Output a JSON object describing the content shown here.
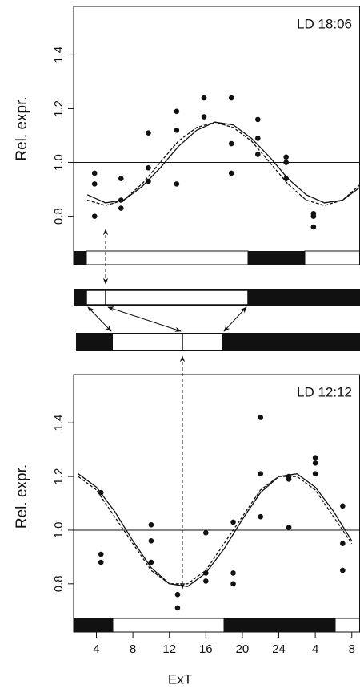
{
  "chart_data": [
    {
      "type": "scatter",
      "annotation": "LD 18:06",
      "ylabel": "Rel. expr.",
      "xlim": [
        1.5,
        32.9
      ],
      "ylim": [
        0.62,
        1.58
      ],
      "yticks": [
        0.8,
        {
          "value": 1,
          "label": "1.0"
        },
        1.2,
        1.4
      ],
      "hline": 1,
      "color": "#111",
      "series": [
        {
          "type": "scatter",
          "x": [
            3.8,
            3.8,
            3.8,
            6.7,
            6.7,
            6.7,
            9.7,
            9.7,
            9.7,
            12.8,
            12.8,
            12.8,
            15.8,
            15.8,
            18.8,
            18.8,
            18.8,
            21.7,
            21.7,
            21.7,
            24.8,
            24.8,
            24.8,
            27.8,
            27.8,
            27.8
          ],
          "values": [
            0.96,
            0.92,
            0.8,
            0.94,
            0.86,
            0.83,
            1.11,
            0.98,
            0.93,
            1.19,
            1.12,
            0.92,
            1.24,
            1.17,
            1.24,
            1.07,
            0.96,
            1.16,
            1.09,
            1.03,
            1.02,
            1.0,
            0.94,
            0.81,
            0.8,
            0.76
          ]
        },
        {
          "type": "line",
          "linestyle": "solid",
          "x": [
            3,
            5,
            7,
            9,
            11,
            13,
            15,
            17,
            19,
            21,
            23,
            25,
            27,
            29,
            31,
            33
          ],
          "values": [
            0.88,
            0.85,
            0.86,
            0.91,
            0.98,
            1.06,
            1.12,
            1.15,
            1.14,
            1.09,
            1.02,
            0.94,
            0.88,
            0.85,
            0.86,
            0.91
          ]
        },
        {
          "type": "line",
          "linestyle": "dashed",
          "x": [
            3,
            5,
            7,
            9,
            11,
            13,
            15,
            17,
            19,
            21,
            23,
            25,
            27,
            29,
            31,
            33
          ],
          "values": [
            0.86,
            0.84,
            0.86,
            0.92,
            1.0,
            1.08,
            1.13,
            1.15,
            1.13,
            1.08,
            1.0,
            0.92,
            0.86,
            0.84,
            0.86,
            0.92
          ]
        }
      ]
    },
    {
      "type": "scatter",
      "annotation": "LD 12:12",
      "ylabel": "Rel. expr.",
      "xlabel": "ExT",
      "xlim": [
        1.5,
        32.9
      ],
      "ylim": [
        0.62,
        1.58
      ],
      "xticks": [
        4,
        8,
        12,
        16,
        20,
        24,
        {
          "value": 28,
          "label": "4"
        },
        {
          "value": 32,
          "label": "8"
        }
      ],
      "yticks": [
        0.8,
        {
          "value": 1,
          "label": "1.0"
        },
        1.2,
        1.4
      ],
      "hline": 1,
      "color": "#111",
      "series": [
        {
          "type": "scatter",
          "x": [
            4.5,
            4.5,
            4.5,
            10,
            10,
            10,
            12.9,
            12.9,
            16,
            16,
            16,
            19,
            19,
            19,
            22,
            22,
            22,
            25.1,
            25.1,
            25.1,
            28,
            28,
            28,
            31,
            31,
            31
          ],
          "values": [
            1.14,
            0.91,
            0.88,
            1.02,
            0.96,
            0.88,
            0.76,
            0.71,
            0.99,
            0.84,
            0.81,
            1.03,
            0.84,
            0.8,
            1.42,
            1.21,
            1.05,
            1.2,
            1.19,
            1.01,
            1.27,
            1.25,
            1.21,
            1.09,
            0.95,
            0.85
          ]
        },
        {
          "type": "line",
          "linestyle": "solid",
          "x": [
            2,
            4,
            6,
            8,
            10,
            12,
            14,
            16,
            18,
            20,
            22,
            24,
            26,
            28,
            30,
            32
          ],
          "values": [
            1.21,
            1.16,
            1.07,
            0.96,
            0.86,
            0.8,
            0.79,
            0.84,
            0.93,
            1.04,
            1.14,
            1.2,
            1.21,
            1.16,
            1.07,
            0.96
          ]
        },
        {
          "type": "line",
          "linestyle": "dashed",
          "x": [
            2,
            4,
            6,
            8,
            10,
            12,
            14,
            16,
            18,
            20,
            22,
            24,
            26,
            28,
            30,
            32
          ],
          "values": [
            1.2,
            1.15,
            1.05,
            0.95,
            0.85,
            0.8,
            0.8,
            0.85,
            0.95,
            1.05,
            1.15,
            1.2,
            1.2,
            1.15,
            1.05,
            0.95
          ]
        }
      ]
    }
  ]
}
